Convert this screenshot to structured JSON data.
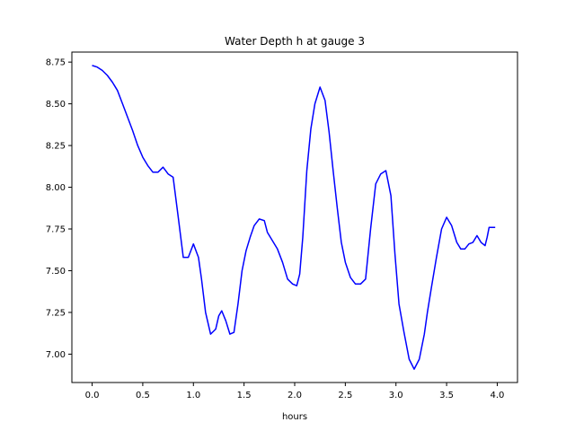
{
  "chart_data": {
    "type": "line",
    "title": "Water Depth h at gauge 3",
    "xlabel": "hours",
    "ylabel": "",
    "xlim": [
      -0.2,
      4.2
    ],
    "ylim": [
      6.83,
      8.81
    ],
    "x_ticks": [
      0.0,
      0.5,
      1.0,
      1.5,
      2.0,
      2.5,
      3.0,
      3.5,
      4.0
    ],
    "x_tick_labels": [
      "0.0",
      "0.5",
      "1.0",
      "1.5",
      "2.0",
      "2.5",
      "3.0",
      "3.5",
      "4.0"
    ],
    "y_ticks": [
      7.0,
      7.25,
      7.5,
      7.75,
      8.0,
      8.25,
      8.5,
      8.75
    ],
    "y_tick_labels": [
      "7.00",
      "7.25",
      "7.50",
      "7.75",
      "8.00",
      "8.25",
      "8.50",
      "8.75"
    ],
    "grid": false,
    "series": [
      {
        "color": "#0000ff",
        "x": [
          0.0,
          0.05,
          0.1,
          0.15,
          0.2,
          0.25,
          0.3,
          0.35,
          0.4,
          0.45,
          0.5,
          0.55,
          0.6,
          0.65,
          0.7,
          0.75,
          0.8,
          0.85,
          0.9,
          0.95,
          1.0,
          1.05,
          1.08,
          1.12,
          1.17,
          1.22,
          1.25,
          1.28,
          1.32,
          1.36,
          1.4,
          1.44,
          1.48,
          1.52,
          1.56,
          1.6,
          1.65,
          1.7,
          1.73,
          1.78,
          1.83,
          1.88,
          1.93,
          1.98,
          2.02,
          2.05,
          2.08,
          2.12,
          2.16,
          2.2,
          2.25,
          2.3,
          2.34,
          2.38,
          2.42,
          2.46,
          2.5,
          2.55,
          2.6,
          2.65,
          2.7,
          2.75,
          2.8,
          2.85,
          2.9,
          2.95,
          2.99,
          3.03,
          3.08,
          3.13,
          3.18,
          3.23,
          3.28,
          3.31,
          3.35,
          3.4,
          3.45,
          3.5,
          3.55,
          3.6,
          3.64,
          3.68,
          3.72,
          3.76,
          3.8,
          3.84,
          3.88,
          3.9,
          3.92,
          3.95,
          3.98
        ],
        "y": [
          8.73,
          8.72,
          8.7,
          8.67,
          8.63,
          8.58,
          8.5,
          8.42,
          8.34,
          8.25,
          8.18,
          8.13,
          8.09,
          8.09,
          8.12,
          8.08,
          8.06,
          7.82,
          7.58,
          7.58,
          7.66,
          7.58,
          7.45,
          7.25,
          7.12,
          7.15,
          7.23,
          7.26,
          7.2,
          7.12,
          7.13,
          7.3,
          7.5,
          7.62,
          7.7,
          7.77,
          7.81,
          7.8,
          7.73,
          7.68,
          7.63,
          7.55,
          7.45,
          7.42,
          7.41,
          7.48,
          7.7,
          8.1,
          8.35,
          8.5,
          8.6,
          8.52,
          8.33,
          8.1,
          7.88,
          7.67,
          7.55,
          7.46,
          7.42,
          7.42,
          7.45,
          7.75,
          8.02,
          8.08,
          8.1,
          7.95,
          7.6,
          7.3,
          7.13,
          6.97,
          6.91,
          6.97,
          7.12,
          7.25,
          7.4,
          7.58,
          7.75,
          7.82,
          7.77,
          7.67,
          7.63,
          7.63,
          7.66,
          7.67,
          7.71,
          7.67,
          7.65,
          7.7,
          7.76,
          7.76,
          7.76
        ]
      }
    ]
  }
}
